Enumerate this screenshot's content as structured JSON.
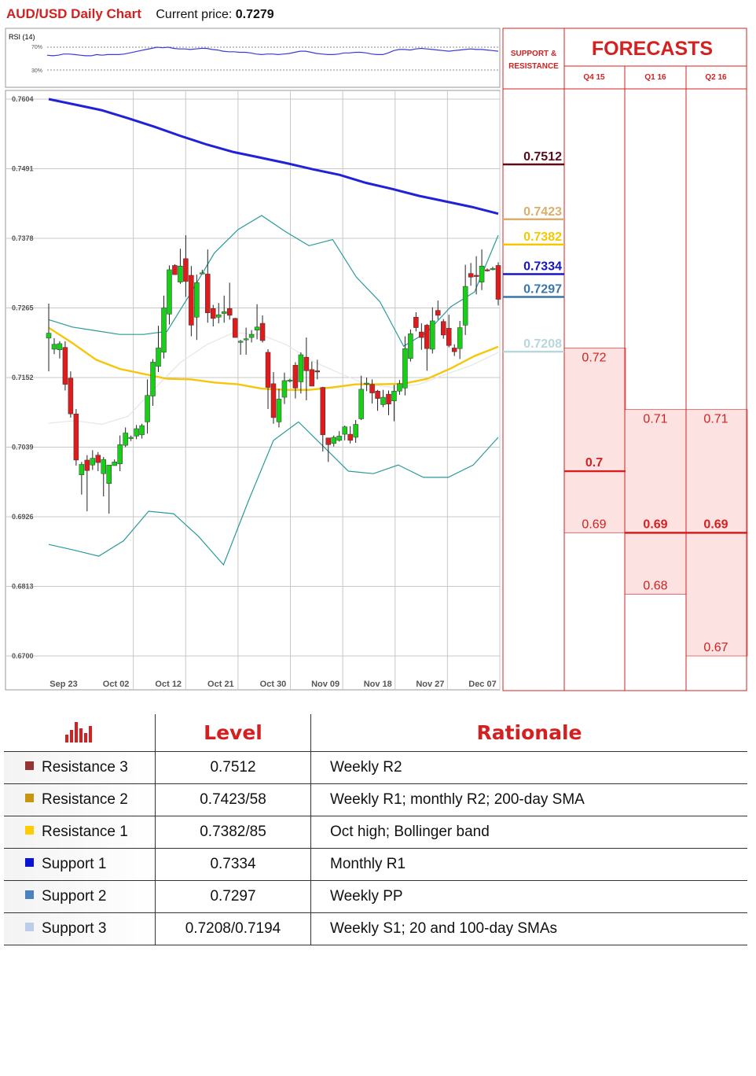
{
  "header": {
    "title": "AUD/USD Daily Chart",
    "price_label": "Current price:",
    "price_value": "0.7279"
  },
  "rsi": {
    "label": "RSI (14)",
    "upper_label": "70%",
    "lower_label": "30%",
    "values": [
      56,
      55,
      56,
      58,
      58,
      57,
      56,
      55,
      55,
      57,
      56,
      57,
      57,
      57,
      58,
      60,
      62,
      64,
      66,
      68,
      70,
      69,
      70,
      68,
      67,
      67,
      66,
      67,
      68,
      68,
      66,
      65,
      63,
      62,
      62,
      61,
      61,
      60,
      58,
      57,
      58,
      58,
      57,
      58,
      59,
      61,
      63,
      63,
      61,
      59,
      58,
      57,
      57,
      58,
      60,
      60,
      61,
      61,
      60,
      58,
      57,
      57,
      60,
      64,
      66,
      66,
      65,
      67,
      68,
      67,
      66,
      65,
      64,
      63,
      64,
      65,
      66,
      67,
      66,
      66,
      65,
      64,
      63
    ]
  },
  "chart_data": {
    "type": "candlestick",
    "title": "AUD/USD Daily Chart",
    "ylim": [
      0.67,
      0.7604
    ],
    "y_ticks": [
      "0.7604",
      "0.7491",
      "0.7378",
      "0.7265",
      "0.7152",
      "0.7039",
      "0.6926",
      "0.6813",
      "0.6700"
    ],
    "x_ticks": [
      "Sep 23",
      "Oct 02",
      "Oct 12",
      "Oct 21",
      "Oct 30",
      "Nov 09",
      "Nov 18",
      "Nov 27",
      "Dec 07"
    ],
    "candles": [
      [
        0.7216,
        0.7224,
        0.7272,
        0.7162
      ],
      [
        0.7198,
        0.7206,
        0.7216,
        0.719
      ],
      [
        0.7197,
        0.7207,
        0.7211,
        0.7183
      ],
      [
        0.7201,
        0.7141,
        0.7211,
        0.7131
      ],
      [
        0.7151,
        0.7093,
        0.7162,
        0.7087
      ],
      [
        0.7093,
        0.7018,
        0.7101,
        0.7009
      ],
      [
        0.6994,
        0.7011,
        0.7015,
        0.6962
      ],
      [
        0.7018,
        0.7001,
        0.7026,
        0.6935
      ],
      [
        0.701,
        0.7021,
        0.7034,
        0.7002
      ],
      [
        0.7026,
        0.7014,
        0.7031,
        0.7
      ],
      [
        0.6996,
        0.7019,
        0.7023,
        0.6959
      ],
      [
        0.698,
        0.701,
        0.7009,
        0.6931
      ],
      [
        0.7009,
        0.7015,
        0.7019,
        0.7011
      ],
      [
        0.7012,
        0.7043,
        0.7058,
        0.7
      ],
      [
        0.7042,
        0.7062,
        0.7071,
        0.7039
      ],
      [
        0.7053,
        0.7055,
        0.7058,
        0.7049
      ],
      [
        0.7057,
        0.7069,
        0.7075,
        0.7052
      ],
      [
        0.7059,
        0.7074,
        0.7077,
        0.7053
      ],
      [
        0.708,
        0.7123,
        0.7149,
        0.7061
      ],
      [
        0.7122,
        0.7177,
        0.7182,
        0.7106
      ],
      [
        0.717,
        0.72,
        0.7236,
        0.7161
      ],
      [
        0.7193,
        0.7265,
        0.7285,
        0.7183
      ],
      [
        0.7255,
        0.7327,
        0.7334,
        0.7238
      ],
      [
        0.7334,
        0.7319,
        0.7336,
        0.7319
      ],
      [
        0.7307,
        0.7333,
        0.7361,
        0.7304
      ],
      [
        0.7345,
        0.7308,
        0.7383,
        0.7283
      ],
      [
        0.7318,
        0.7237,
        0.7333,
        0.7219
      ],
      [
        0.725,
        0.7306,
        0.7319,
        0.7213
      ],
      [
        0.7321,
        0.7322,
        0.7327,
        0.732
      ],
      [
        0.732,
        0.7257,
        0.736,
        0.7241
      ],
      [
        0.7264,
        0.7248,
        0.727,
        0.7235
      ],
      [
        0.725,
        0.7254,
        0.7273,
        0.724
      ],
      [
        0.7256,
        0.7259,
        0.7285,
        0.7241
      ],
      [
        0.7264,
        0.7253,
        0.7306,
        0.7246
      ],
      [
        0.7248,
        0.7217,
        0.7249,
        0.7217
      ],
      [
        0.7211,
        0.7211,
        0.7213,
        0.7189
      ],
      [
        0.7214,
        0.7215,
        0.7233,
        0.7189
      ],
      [
        0.7217,
        0.7222,
        0.7229,
        0.7209
      ],
      [
        0.7229,
        0.7234,
        0.7271,
        0.7214
      ],
      [
        0.724,
        0.7212,
        0.7253,
        0.7209
      ],
      [
        0.7193,
        0.7136,
        0.7198,
        0.7101
      ],
      [
        0.7142,
        0.7087,
        0.7161,
        0.7077
      ],
      [
        0.708,
        0.7117,
        0.7134,
        0.7071
      ],
      [
        0.712,
        0.7147,
        0.716,
        0.7109
      ],
      [
        0.7147,
        0.7148,
        0.715,
        0.7144
      ],
      [
        0.7172,
        0.7135,
        0.7177,
        0.7118
      ],
      [
        0.7145,
        0.7189,
        0.7193,
        0.7126
      ],
      [
        0.7185,
        0.7163,
        0.7217,
        0.7115
      ],
      [
        0.7165,
        0.7138,
        0.7178,
        0.7139
      ],
      [
        0.7163,
        0.7161,
        0.7181,
        0.7149
      ],
      [
        0.7136,
        0.7059,
        0.7137,
        0.7032
      ],
      [
        0.7054,
        0.7043,
        0.7047,
        0.7015
      ],
      [
        0.7045,
        0.7055,
        0.7058,
        0.704
      ],
      [
        0.705,
        0.7057,
        0.7065,
        0.7048
      ],
      [
        0.706,
        0.7072,
        0.7074,
        0.705
      ],
      [
        0.706,
        0.705,
        0.7073,
        0.7045
      ],
      [
        0.7055,
        0.7076,
        0.7083,
        0.7046
      ],
      [
        0.7085,
        0.7133,
        0.7155,
        0.7083
      ],
      [
        0.7142,
        0.7143,
        0.7152,
        0.713
      ],
      [
        0.7141,
        0.7127,
        0.7149,
        0.711
      ],
      [
        0.713,
        0.7118,
        0.7132,
        0.7098
      ],
      [
        0.7108,
        0.712,
        0.7132,
        0.7104
      ],
      [
        0.7125,
        0.7109,
        0.7131,
        0.7091
      ],
      [
        0.7114,
        0.713,
        0.714,
        0.7081
      ],
      [
        0.713,
        0.7142,
        0.7148,
        0.7124
      ],
      [
        0.7135,
        0.7199,
        0.7219,
        0.7123
      ],
      [
        0.7183,
        0.7223,
        0.723,
        0.7178
      ],
      [
        0.725,
        0.7233,
        0.7258,
        0.7227
      ],
      [
        0.7226,
        0.7217,
        0.724,
        0.7197
      ],
      [
        0.7237,
        0.7199,
        0.7239,
        0.7163
      ],
      [
        0.7198,
        0.7244,
        0.7266,
        0.7191
      ],
      [
        0.7261,
        0.7253,
        0.7277,
        0.7246
      ],
      [
        0.7243,
        0.7221,
        0.7247,
        0.7215
      ],
      [
        0.7232,
        0.7204,
        0.7254,
        0.7201
      ],
      [
        0.72,
        0.7194,
        0.7206,
        0.7187
      ],
      [
        0.7199,
        0.7233,
        0.7244,
        0.7182
      ],
      [
        0.7237,
        0.73,
        0.7335,
        0.7221
      ],
      [
        0.7321,
        0.7315,
        0.7338,
        0.7301
      ],
      [
        0.7318,
        0.7316,
        0.7349,
        0.7287
      ],
      [
        0.7307,
        0.7333,
        0.736,
        0.7294
      ],
      [
        0.7327,
        0.7326,
        0.7329,
        0.7324
      ],
      [
        0.7329,
        0.7329,
        0.7332,
        0.7326
      ],
      [
        0.7334,
        0.7279,
        0.7339,
        0.7269
      ]
    ],
    "sma200": [
      0.7604,
      0.7595,
      0.7586,
      0.7573,
      0.7559,
      0.7544,
      0.753,
      0.7518,
      0.7509,
      0.75,
      0.749,
      0.7481,
      0.7468,
      0.7458,
      0.7447,
      0.7438,
      0.7429,
      0.7418
    ],
    "sma100": [
      0.7233,
      0.7208,
      0.7181,
      0.7166,
      0.7158,
      0.715,
      0.7149,
      0.7144,
      0.7141,
      0.7134,
      0.7132,
      0.7132,
      0.7136,
      0.7141,
      0.7141,
      0.7142,
      0.715,
      0.7167,
      0.7187,
      0.7202
    ],
    "boll_mid": [
      0.7078,
      0.7082,
      0.7076,
      0.7089,
      0.7134,
      0.7177,
      0.7206,
      0.7225,
      0.7222,
      0.7205,
      0.7178,
      0.7159,
      0.7141,
      0.7136,
      0.7141,
      0.7157,
      0.7172,
      0.7193
    ],
    "boll_upper": [
      0.7246,
      0.7234,
      0.7228,
      0.7222,
      0.7222,
      0.7227,
      0.7289,
      0.7354,
      0.7392,
      0.7415,
      0.7389,
      0.7366,
      0.7376,
      0.7315,
      0.7275,
      0.7203,
      0.7226,
      0.7267,
      0.7291,
      0.7383
    ],
    "boll_lower": [
      0.6881,
      0.6872,
      0.6862,
      0.6887,
      0.6935,
      0.6931,
      0.6894,
      0.6848,
      0.6952,
      0.705,
      0.708,
      0.704,
      0.7,
      0.6996,
      0.701,
      0.699,
      0.699,
      0.701,
      0.7055
    ],
    "sr_levels": [
      {
        "value": "0.7512",
        "color": "#5c0a18"
      },
      {
        "value": "0.7423",
        "color": "#d8b06c"
      },
      {
        "value": "0.7382",
        "color": "#f6c700"
      },
      {
        "value": "0.7334",
        "color": "#1616c8"
      },
      {
        "value": "0.7297",
        "color": "#3a76a8"
      },
      {
        "value": "0.7208",
        "color": "#b7d7dd"
      }
    ],
    "forecasts": {
      "periods": [
        "Q4 15",
        "Q1 16",
        "Q2 16"
      ],
      "columns": [
        {
          "high": "0.72",
          "median": "0.7",
          "low": "0.69",
          "range": [
            0.69,
            0.72
          ]
        },
        {
          "high": "0.71",
          "median": "0.69",
          "low": "0.68",
          "range": [
            0.68,
            0.71
          ]
        },
        {
          "high": "0.71",
          "median": "0.69",
          "low": "0.67",
          "range": [
            0.67,
            0.71
          ]
        }
      ]
    }
  },
  "panel": {
    "sr_title_line1": "SUPPORT &",
    "sr_title_line2": "RESISTANCE",
    "forecasts_title": "FORECASTS"
  },
  "table": {
    "level_header": "Level",
    "rationale_header": "Rationale",
    "rows": [
      {
        "name": "Resistance 3",
        "level": "0.7512",
        "rationale": "Weekly R2",
        "color": "#943434"
      },
      {
        "name": "Resistance 2",
        "level": "0.7423/58",
        "rationale": "Weekly R1; monthly R2; 200-day SMA",
        "color": "#c8960c"
      },
      {
        "name": "Resistance 1",
        "level": "0.7382/85",
        "rationale": "Oct high; Bollinger band",
        "color": "#ffcc00"
      },
      {
        "name": "Support 1",
        "level": "0.7334",
        "rationale": "Monthly R1",
        "color": "#0a14d4"
      },
      {
        "name": "Support 2",
        "level": "0.7297",
        "rationale": "Weekly PP",
        "color": "#4a82bd"
      },
      {
        "name": "Support 3",
        "level": "0.7208/0.7194",
        "rationale": "Weekly S1; 20 and 100-day SMAs",
        "color": "#bccde8"
      }
    ]
  }
}
